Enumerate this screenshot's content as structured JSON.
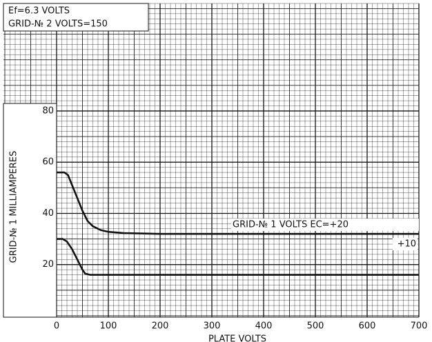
{
  "chart_data": {
    "type": "line",
    "annotations": [
      "Ef=6.3 VOLTS",
      "GRID-№ 2 VOLTS=150"
    ],
    "xlabel": "PLATE VOLTS",
    "ylabel": "GRID-№ 1 MILLIAMPERES",
    "xlim": [
      0,
      700
    ],
    "ylim": [
      0,
      122
    ],
    "xticks": [
      0,
      100,
      200,
      300,
      400,
      500,
      600,
      700
    ],
    "yticks": [
      20,
      40,
      60,
      80
    ],
    "grid": true,
    "series": [
      {
        "name": "GRID-№ 1 VOLTS EC=+20",
        "color": "#111111",
        "x": [
          0,
          15,
          22,
          30,
          40,
          50,
          60,
          70,
          85,
          100,
          130,
          200,
          700
        ],
        "values": [
          56,
          56,
          55,
          51,
          46,
          41,
          37,
          35,
          33.5,
          32.8,
          32.3,
          32,
          32
        ]
      },
      {
        "name": "+10",
        "color": "#111111",
        "x": [
          0,
          12,
          20,
          30,
          40,
          50,
          55,
          65,
          100,
          700
        ],
        "values": [
          30,
          30,
          29,
          26,
          22,
          18,
          16.5,
          16,
          16,
          16
        ]
      }
    ]
  }
}
